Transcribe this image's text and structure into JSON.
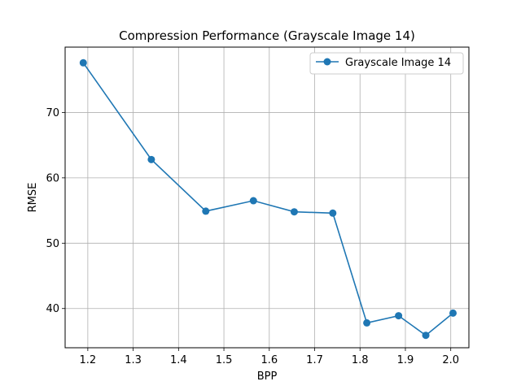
{
  "chart_data": {
    "type": "line",
    "title": "Compression Performance (Grayscale Image 14)",
    "xlabel": "BPP",
    "ylabel": "RMSE",
    "xlim": [
      1.15,
      2.04
    ],
    "ylim": [
      34,
      80
    ],
    "xticks": [
      1.2,
      1.3,
      1.4,
      1.5,
      1.6,
      1.7,
      1.8,
      1.9,
      2.0
    ],
    "yticks": [
      40,
      50,
      60,
      70
    ],
    "grid": true,
    "legend_position": "top-right",
    "series": [
      {
        "name": "Grayscale Image 14",
        "color": "#1f77b4",
        "marker": "circle",
        "x": [
          1.19,
          1.34,
          1.46,
          1.565,
          1.655,
          1.74,
          1.815,
          1.885,
          1.945,
          2.005
        ],
        "y": [
          77.6,
          62.8,
          54.9,
          56.5,
          54.8,
          54.6,
          37.8,
          38.9,
          35.9,
          39.3
        ]
      }
    ]
  }
}
